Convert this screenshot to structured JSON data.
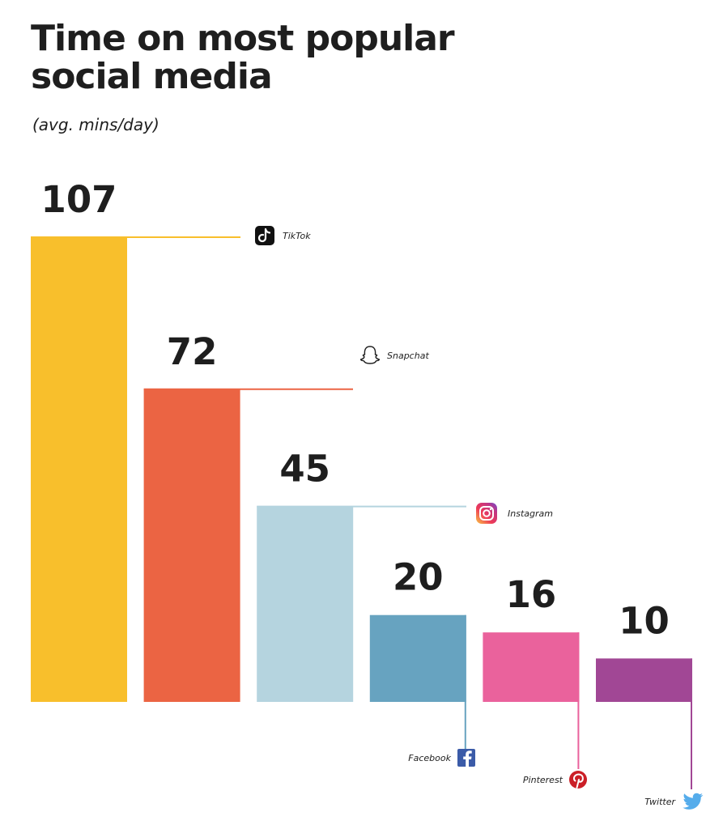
{
  "header": {
    "title_line1": "Time on most popular",
    "title_line2": "social media",
    "subtitle": "(avg. mins/day)"
  },
  "chart_data": {
    "type": "bar",
    "title": "Time on most popular social media",
    "subtitle": "(avg. mins/day)",
    "categories": [
      "TikTok",
      "Snapchat",
      "Instagram",
      "Facebook",
      "Pinterest",
      "Twitter"
    ],
    "values": [
      107,
      72,
      45,
      20,
      16,
      10
    ],
    "value_labels": [
      "107",
      "72",
      "45",
      "20",
      "16",
      "10"
    ],
    "colors": [
      "#f8bf2c",
      "#eb6443",
      "#b5d4df",
      "#67a3c0",
      "#ea629c",
      "#a14795"
    ],
    "icons": [
      "tiktok-icon",
      "snapchat-icon",
      "instagram-icon",
      "facebook-icon",
      "pinterest-icon",
      "twitter-icon"
    ],
    "ylim": [
      0,
      107
    ],
    "grid": false,
    "legend": "none"
  }
}
